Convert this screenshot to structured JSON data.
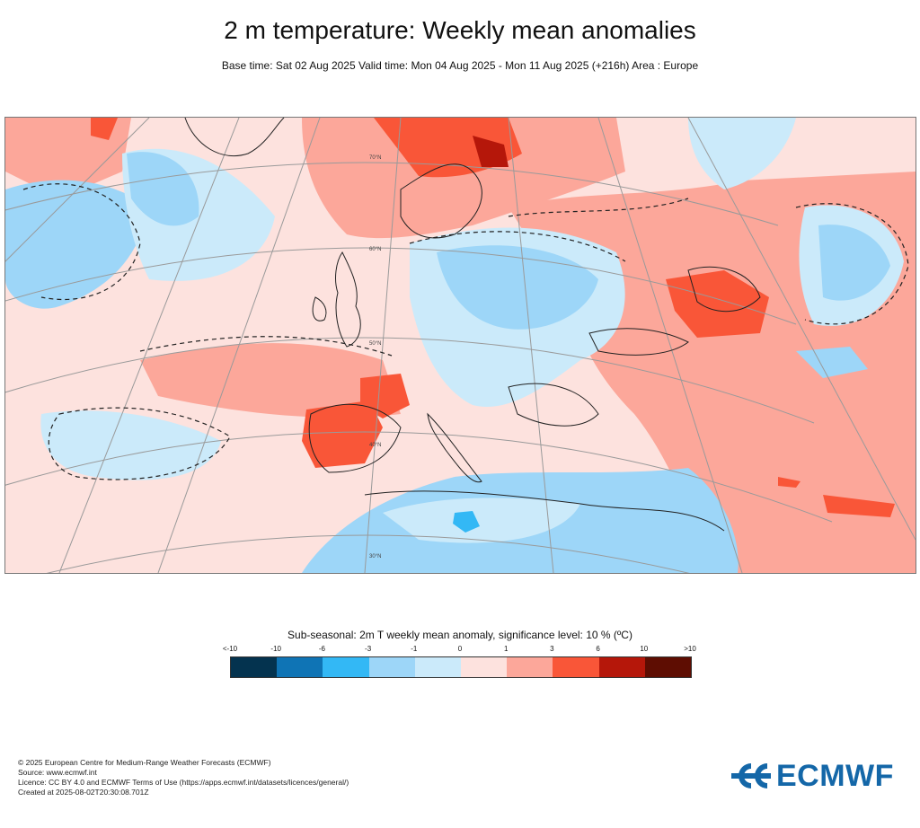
{
  "title": "2 m temperature: Weekly mean anomalies",
  "subtitle": "Base time: Sat 02 Aug 2025 Valid time: Mon 04 Aug 2025 - Mon 11 Aug 2025 (+216h) Area : Europe",
  "map": {
    "area": "Europe",
    "latitude_labels": [
      "70°N",
      "60°N",
      "50°N",
      "40°N",
      "30°N"
    ]
  },
  "colorbar": {
    "title": "Sub-seasonal: 2m T weekly mean anomaly, significance level: 10 % (ºC)",
    "tick_labels": [
      "<-10",
      "-10",
      "-6",
      "-3",
      "-1",
      "0",
      "1",
      "3",
      "6",
      "10",
      ">10"
    ],
    "colors": [
      "#04334f",
      "#0f74b5",
      "#33b8f5",
      "#9dd6f8",
      "#cbeafa",
      "#fde2de",
      "#fca79a",
      "#f95638",
      "#b5170a",
      "#5e0d02"
    ]
  },
  "footer": {
    "line1": "© 2025 European Centre for Medium-Range Weather Forecasts (ECMWF)",
    "line2": "Source: www.ecmwf.int",
    "line3": "Licence: CC BY 4.0 and ECMWF Terms of Use (https://apps.ecmwf.int/datasets/licences/general/)",
    "line4": "Created at 2025-08-02T20:30:08.701Z"
  },
  "logo": {
    "text": "ECMWF",
    "color": "#1467a8"
  }
}
